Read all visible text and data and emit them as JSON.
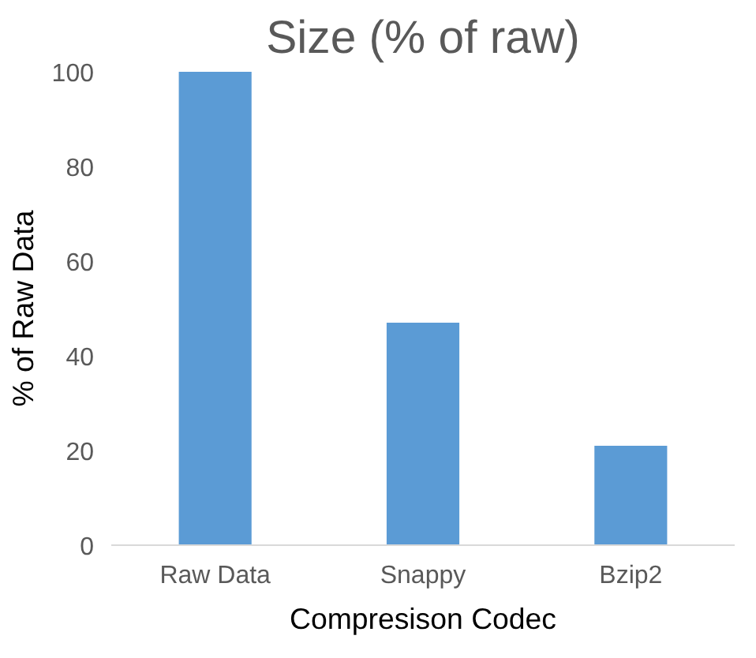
{
  "chart_data": {
    "type": "bar",
    "title": "Size (% of raw)",
    "xlabel": "Compresison Codec",
    "ylabel": "% of Raw Data",
    "categories": [
      "Raw Data",
      "Snappy",
      "Bzip2"
    ],
    "values": [
      100,
      47,
      21
    ],
    "color": "#5b9bd5",
    "ylim": [
      0,
      100
    ],
    "yticks": [
      0,
      20,
      40,
      60,
      80,
      100
    ],
    "grid": false
  }
}
